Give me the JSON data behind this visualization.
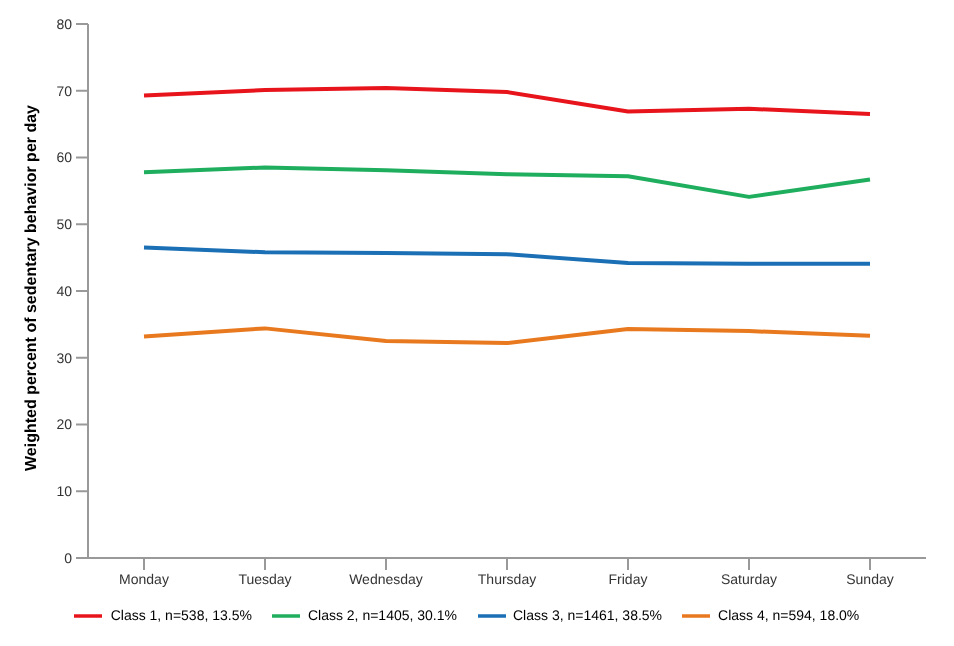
{
  "chart_data": {
    "type": "line",
    "ylabel": "Weighted percent of sedentary behavior per day",
    "categories": [
      "Monday",
      "Tuesday",
      "Wednesday",
      "Thursday",
      "Friday",
      "Saturday",
      "Sunday"
    ],
    "series": [
      {
        "name": "Class 1, n=538, 13.5%",
        "color": "#e8141c",
        "values": [
          69.3,
          70.1,
          70.4,
          69.8,
          66.9,
          67.3,
          66.5
        ]
      },
      {
        "name": "Class 2, n=1405, 30.1%",
        "color": "#1fae5e",
        "values": [
          57.8,
          58.5,
          58.1,
          57.5,
          57.2,
          54.1,
          56.7
        ]
      },
      {
        "name": "Class 3, n=1461, 38.5%",
        "color": "#1a6fb5",
        "values": [
          46.5,
          45.8,
          45.7,
          45.5,
          44.2,
          44.1,
          44.1
        ]
      },
      {
        "name": "Class 4, n=594, 18.0%",
        "color": "#e8791e",
        "values": [
          33.2,
          34.4,
          32.5,
          32.2,
          34.3,
          34.0,
          33.3
        ]
      }
    ],
    "ylim": [
      0,
      80
    ],
    "yticks": [
      0,
      10,
      20,
      30,
      40,
      50,
      60,
      70,
      80
    ],
    "grid": false,
    "legend": "bottom",
    "marker": "none",
    "line_style": "solid"
  }
}
